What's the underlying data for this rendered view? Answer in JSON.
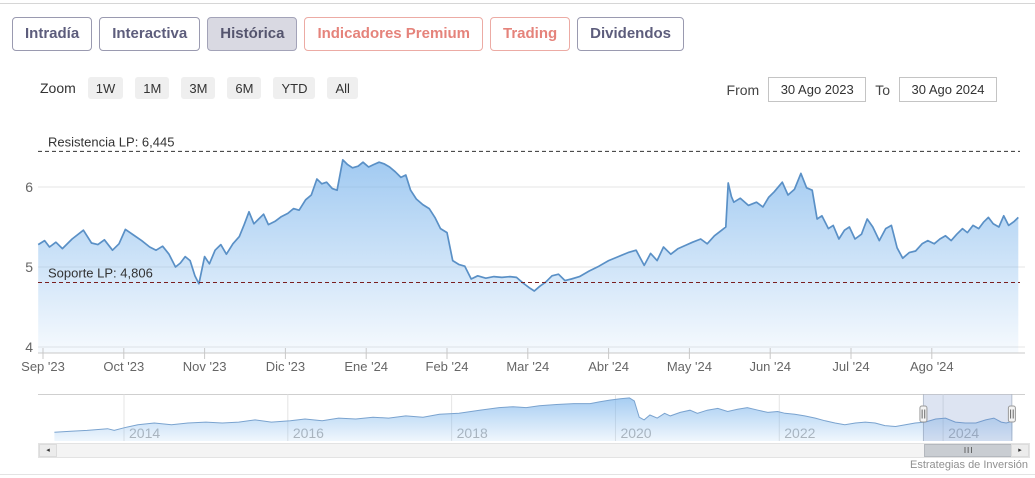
{
  "tabs": {
    "items": [
      {
        "label": "Intradía",
        "state": "normal"
      },
      {
        "label": "Interactiva",
        "state": "normal"
      },
      {
        "label": "Histórica",
        "state": "selected"
      },
      {
        "label": "Indicadores Premium",
        "state": "accent"
      },
      {
        "label": "Trading",
        "state": "accent"
      },
      {
        "label": "Dividendos",
        "state": "normal"
      }
    ]
  },
  "toolbar": {
    "zoom_label": "Zoom",
    "zoom_buttons": [
      "1W",
      "1M",
      "3M",
      "6M",
      "YTD",
      "All"
    ],
    "range": {
      "from_label": "From",
      "from_value": "30 Ago 2023",
      "to_label": "To",
      "to_value": "30 Ago 2024"
    }
  },
  "colors": {
    "series_fill": "#7cb5ec",
    "series_line": "#5a90c6",
    "grid": "#e6e6e6",
    "axis_text": "#666666",
    "resistance_line": "#333333",
    "support_line": "#7a1f1f",
    "plotline_label": "#333333",
    "nav_year_text": "#b4b4b4",
    "nav_mask": "rgba(102,133,194,0.22)",
    "accent_tab": "#e5837b"
  },
  "chart_data": [
    {
      "type": "area",
      "title": "",
      "x_unit": "months since the Sep '23 tick (0 = Sep 2023, 11 = Ago 2024)",
      "xlabels": [
        "Sep '23",
        "Oct '23",
        "Nov '23",
        "Dic '23",
        "Ene '24",
        "Feb '24",
        "Mar '24",
        "Abr '24",
        "May '24",
        "Jun '24",
        "Jul '24",
        "Ago '24"
      ],
      "yticks": [
        4,
        5,
        6
      ],
      "ylim": [
        3.95,
        6.95
      ],
      "grid": true,
      "plotlines": [
        {
          "name": "resistencia",
          "label": "Resistencia LP: 6,445",
          "value": 6.445,
          "dash": "4,3"
        },
        {
          "name": "soporte",
          "label": "Soporte LP: 4,806",
          "value": 4.806,
          "dash": "4,3"
        }
      ],
      "x": [
        -0.06,
        0.02,
        0.08,
        0.16,
        0.24,
        0.36,
        0.5,
        0.6,
        0.68,
        0.76,
        0.86,
        0.94,
        1.02,
        1.12,
        1.22,
        1.32,
        1.4,
        1.48,
        1.56,
        1.64,
        1.7,
        1.76,
        1.82,
        1.88,
        1.93,
        2.0,
        2.06,
        2.13,
        2.2,
        2.27,
        2.35,
        2.43,
        2.49,
        2.55,
        2.61,
        2.67,
        2.73,
        2.79,
        2.87,
        2.95,
        3.03,
        3.1,
        3.17,
        3.25,
        3.32,
        3.39,
        3.45,
        3.51,
        3.58,
        3.64,
        3.71,
        3.77,
        3.83,
        3.9,
        3.96,
        4.03,
        4.09,
        4.16,
        4.22,
        4.29,
        4.36,
        4.43,
        4.49,
        4.55,
        4.62,
        4.7,
        4.78,
        4.85,
        4.92,
        5.0,
        5.07,
        5.15,
        5.22,
        5.3,
        5.38,
        5.48,
        5.58,
        5.68,
        5.78,
        5.86,
        5.94,
        6.02,
        6.08,
        6.15,
        6.22,
        6.3,
        6.38,
        6.46,
        6.54,
        6.64,
        6.76,
        6.88,
        7.0,
        7.12,
        7.24,
        7.34,
        7.44,
        7.52,
        7.6,
        7.68,
        7.77,
        7.86,
        7.95,
        8.04,
        8.14,
        8.22,
        8.31,
        8.4,
        8.45,
        8.48,
        8.52,
        8.55,
        8.63,
        8.73,
        8.83,
        8.91,
        8.98,
        9.05,
        9.15,
        9.22,
        9.3,
        9.38,
        9.45,
        9.52,
        9.58,
        9.64,
        9.72,
        9.78,
        9.85,
        9.92,
        9.98,
        10.05,
        10.13,
        10.2,
        10.27,
        10.35,
        10.43,
        10.5,
        10.57,
        10.64,
        10.72,
        10.8,
        10.88,
        10.95,
        11.03,
        11.1,
        11.17,
        11.24,
        11.31,
        11.38,
        11.44,
        11.51,
        11.58,
        11.64,
        11.7,
        11.76,
        11.83,
        11.89,
        11.95,
        12.02,
        12.07
      ],
      "values": [
        5.28,
        5.33,
        5.25,
        5.31,
        5.23,
        5.35,
        5.46,
        5.3,
        5.28,
        5.34,
        5.21,
        5.29,
        5.47,
        5.4,
        5.33,
        5.25,
        5.21,
        5.26,
        5.16,
        5.0,
        5.05,
        5.13,
        5.08,
        4.89,
        4.79,
        5.13,
        5.04,
        5.21,
        5.28,
        5.16,
        5.29,
        5.38,
        5.53,
        5.69,
        5.54,
        5.6,
        5.66,
        5.53,
        5.57,
        5.63,
        5.67,
        5.73,
        5.71,
        5.84,
        5.9,
        6.1,
        6.04,
        6.06,
        5.98,
        5.96,
        6.34,
        6.28,
        6.24,
        6.26,
        6.31,
        6.25,
        6.28,
        6.31,
        6.29,
        6.25,
        6.19,
        6.12,
        6.15,
        5.96,
        5.85,
        5.78,
        5.73,
        5.62,
        5.48,
        5.43,
        5.08,
        5.03,
        5.01,
        4.85,
        4.89,
        4.86,
        4.88,
        4.87,
        4.88,
        4.87,
        4.8,
        4.74,
        4.7,
        4.76,
        4.81,
        4.89,
        4.91,
        4.83,
        4.85,
        4.88,
        4.95,
        5.01,
        5.08,
        5.13,
        5.18,
        5.21,
        5.02,
        5.17,
        5.08,
        5.25,
        5.16,
        5.23,
        5.27,
        5.31,
        5.35,
        5.29,
        5.39,
        5.46,
        5.5,
        6.05,
        5.88,
        5.81,
        5.86,
        5.77,
        5.81,
        5.75,
        5.87,
        5.94,
        6.06,
        5.9,
        5.97,
        6.17,
        5.99,
        5.96,
        5.6,
        5.64,
        5.48,
        5.52,
        5.35,
        5.46,
        5.5,
        5.35,
        5.41,
        5.6,
        5.5,
        5.33,
        5.48,
        5.52,
        5.24,
        5.11,
        5.18,
        5.2,
        5.29,
        5.33,
        5.29,
        5.35,
        5.39,
        5.33,
        5.41,
        5.48,
        5.43,
        5.52,
        5.48,
        5.56,
        5.62,
        5.54,
        5.5,
        5.64,
        5.52,
        5.57,
        5.62
      ]
    },
    {
      "type": "area",
      "role": "navigator",
      "x_unit": "year",
      "xticks": [
        2014,
        2016,
        2018,
        2020,
        2022,
        2024
      ],
      "xlim": [
        2012.95,
        2025.0
      ],
      "values_normalized": true,
      "selection": {
        "from": 2023.76,
        "to": 2024.84
      },
      "x": [
        2013.15,
        2013.35,
        2013.55,
        2013.8,
        2013.88,
        2014.0,
        2014.17,
        2014.37,
        2014.58,
        2014.78,
        2015.0,
        2015.2,
        2015.4,
        2015.6,
        2015.8,
        2016.03,
        2016.21,
        2016.42,
        2016.62,
        2016.83,
        2017.04,
        2017.23,
        2017.44,
        2017.65,
        2017.85,
        2018.09,
        2018.34,
        2018.58,
        2018.75,
        2018.91,
        2019.07,
        2019.28,
        2019.49,
        2019.69,
        2019.81,
        2019.93,
        2020.06,
        2020.17,
        2020.23,
        2020.29,
        2020.35,
        2020.42,
        2020.51,
        2020.6,
        2020.67,
        2020.79,
        2020.91,
        2021.0,
        2021.12,
        2021.25,
        2021.37,
        2021.49,
        2021.61,
        2021.74,
        2021.86,
        2021.98,
        2022.07,
        2022.19,
        2022.31,
        2022.44,
        2022.56,
        2022.68,
        2022.8,
        2022.93,
        2023.05,
        2023.17,
        2023.29,
        2023.42,
        2023.54,
        2023.66,
        2023.78,
        2023.91,
        2024.03,
        2024.15,
        2024.27,
        2024.4,
        2024.52,
        2024.62,
        2024.71,
        2024.77,
        2024.85
      ],
      "values": [
        0.2,
        0.22,
        0.24,
        0.28,
        0.24,
        0.3,
        0.37,
        0.41,
        0.37,
        0.41,
        0.43,
        0.41,
        0.43,
        0.48,
        0.43,
        0.46,
        0.5,
        0.46,
        0.52,
        0.5,
        0.54,
        0.52,
        0.57,
        0.54,
        0.61,
        0.63,
        0.7,
        0.76,
        0.78,
        0.76,
        0.8,
        0.83,
        0.85,
        0.85,
        0.89,
        0.93,
        0.96,
        0.98,
        0.91,
        0.54,
        0.48,
        0.59,
        0.52,
        0.63,
        0.57,
        0.65,
        0.7,
        0.63,
        0.7,
        0.74,
        0.67,
        0.72,
        0.76,
        0.7,
        0.65,
        0.67,
        0.63,
        0.61,
        0.57,
        0.52,
        0.46,
        0.41,
        0.37,
        0.41,
        0.43,
        0.41,
        0.35,
        0.33,
        0.37,
        0.41,
        0.43,
        0.5,
        0.52,
        0.43,
        0.41,
        0.41,
        0.48,
        0.52,
        0.43,
        0.41,
        0.45
      ]
    }
  ],
  "scrollbar": {
    "left_arrow": "◂",
    "right_arrow": "▸",
    "grip": "III"
  },
  "credit": "Estrategias de Inversión"
}
